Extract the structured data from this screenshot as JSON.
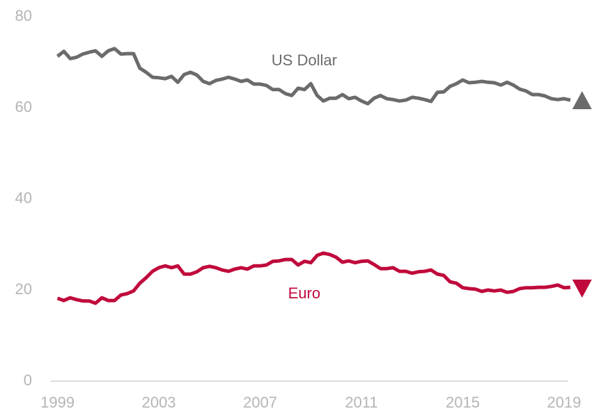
{
  "chart_data": {
    "type": "line",
    "x": [
      1999,
      1999.25,
      1999.5,
      1999.75,
      2000,
      2000.25,
      2000.5,
      2000.75,
      2001,
      2001.25,
      2001.5,
      2001.75,
      2002,
      2002.25,
      2002.5,
      2002.75,
      2003,
      2003.25,
      2003.5,
      2003.75,
      2004,
      2004.25,
      2004.5,
      2004.75,
      2005,
      2005.25,
      2005.5,
      2005.75,
      2006,
      2006.25,
      2006.5,
      2006.75,
      2007,
      2007.25,
      2007.5,
      2007.75,
      2008,
      2008.25,
      2008.5,
      2008.75,
      2009,
      2009.25,
      2009.5,
      2009.75,
      2010,
      2010.25,
      2010.5,
      2010.75,
      2011,
      2011.25,
      2011.5,
      2011.75,
      2012,
      2012.25,
      2012.5,
      2012.75,
      2013,
      2013.25,
      2013.5,
      2013.75,
      2014,
      2014.25,
      2014.5,
      2014.75,
      2015,
      2015.25,
      2015.5,
      2015.75,
      2016,
      2016.25,
      2016.5,
      2016.75,
      2017,
      2017.25,
      2017.5,
      2017.75,
      2018,
      2018.25,
      2018.5,
      2018.75,
      2019,
      2019.25
    ],
    "series": [
      {
        "name": "US Dollar",
        "color": "#6b6b6b",
        "values": [
          71.3,
          72.4,
          70.8,
          71.1,
          71.8,
          72.2,
          72.5,
          71.3,
          72.5,
          73.0,
          71.8,
          71.9,
          71.9,
          68.7,
          67.8,
          66.7,
          66.6,
          66.4,
          66.9,
          65.6,
          67.3,
          67.8,
          67.2,
          65.8,
          65.3,
          66.0,
          66.3,
          66.7,
          66.3,
          65.8,
          66.1,
          65.2,
          65.2,
          64.9,
          64.0,
          64.0,
          63.1,
          62.7,
          64.3,
          64.0,
          65.3,
          62.7,
          61.5,
          62.1,
          62.1,
          62.9,
          62.0,
          62.3,
          61.5,
          60.9,
          62.1,
          62.7,
          62.0,
          61.8,
          61.5,
          61.7,
          62.3,
          62.1,
          61.8,
          61.4,
          63.4,
          63.5,
          64.7,
          65.3,
          66.1,
          65.5,
          65.6,
          65.8,
          65.6,
          65.5,
          65.0,
          65.6,
          65.0,
          64.1,
          63.7,
          62.9,
          62.9,
          62.6,
          62.0,
          61.8,
          62.0,
          61.7
        ]
      },
      {
        "name": "Euro",
        "color": "#c00a3c",
        "values": [
          18.2,
          17.7,
          18.3,
          17.9,
          17.6,
          17.6,
          17.1,
          18.3,
          17.7,
          17.7,
          18.9,
          19.2,
          19.8,
          21.5,
          22.7,
          24.1,
          24.9,
          25.3,
          24.9,
          25.3,
          23.5,
          23.5,
          24.0,
          24.9,
          25.2,
          24.9,
          24.4,
          24.1,
          24.6,
          24.9,
          24.6,
          25.3,
          25.3,
          25.5,
          26.3,
          26.4,
          26.7,
          26.7,
          25.5,
          26.3,
          26.0,
          27.6,
          28.1,
          27.8,
          27.2,
          26.1,
          26.4,
          26.0,
          26.3,
          26.4,
          25.6,
          24.7,
          24.7,
          24.9,
          24.1,
          24.1,
          23.7,
          24.0,
          24.1,
          24.4,
          23.5,
          23.2,
          21.8,
          21.5,
          20.5,
          20.3,
          20.2,
          19.7,
          20.0,
          19.8,
          20.0,
          19.5,
          19.7,
          20.3,
          20.5,
          20.5,
          20.6,
          20.6,
          20.8,
          21.1,
          20.5,
          20.6
        ]
      }
    ],
    "xlim": [
      1998.9,
      2019.3
    ],
    "xticks": [
      1999,
      2003,
      2007,
      2011,
      2015,
      2019
    ],
    "ylim": [
      0,
      80
    ],
    "yticks": [
      0,
      20,
      40,
      60,
      80
    ]
  }
}
